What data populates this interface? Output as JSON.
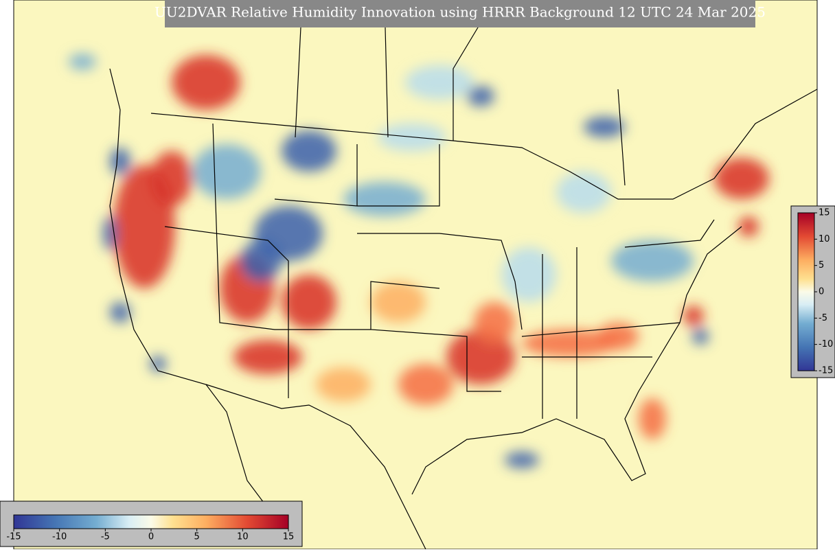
{
  "title": "UU2DVAR Relative Humidity Innovation using HRRR Background 12 UTC 24 Mar 2025",
  "colorbar_bottom": {
    "lim": [
      -15,
      15
    ],
    "ticks": [
      -15,
      -10,
      -5,
      0,
      5,
      10,
      15
    ]
  },
  "colorbar_right": {
    "lim": [
      -15,
      15
    ],
    "ticks": [
      -15,
      -10,
      -5,
      0,
      5,
      10,
      15
    ]
  }
}
